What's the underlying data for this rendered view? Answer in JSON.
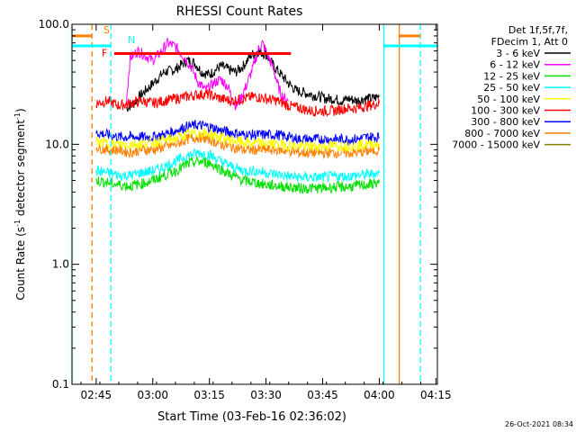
{
  "chart_data": {
    "type": "line",
    "title": "RHESSI Count Rates",
    "xlabel": "Start Time (03-Feb-16 02:36:02)",
    "ylabel_main": "Count Rate (s",
    "ylabel_sup1": "-1",
    "ylabel_mid": " detector segment",
    "ylabel_sup2": "-1",
    "ylabel_end": ")",
    "timestamp": "26-Oct-2021 08:34",
    "yscale": "log",
    "ylim": [
      0.1,
      100
    ],
    "xlim_minutes": [
      2.6,
      99.4
    ],
    "x_tick_labels": [
      "02:45",
      "03:00",
      "03:15",
      "03:30",
      "03:45",
      "04:00",
      "04:15"
    ],
    "x_tick_minutes": [
      9,
      24,
      39,
      54,
      69,
      84,
      99
    ],
    "y_tick_labels": [
      "0.1",
      "1.0",
      "10.0",
      "100.0"
    ],
    "y_tick_values": [
      0.1,
      1,
      10,
      100
    ],
    "legend": {
      "header": [
        "Det 1f,5f,7f,",
        "FDecim 1, Att 0"
      ],
      "position": "right-outside",
      "entries": [
        {
          "label": "3 - 6 keV",
          "color": "#000000"
        },
        {
          "label": "6 - 12 keV",
          "color": "#ff00ff"
        },
        {
          "label": "12 - 25 keV",
          "color": "#00e000"
        },
        {
          "label": "25 - 50 keV",
          "color": "#00ffff"
        },
        {
          "label": "50 - 100 keV",
          "color": "#ffff00"
        },
        {
          "label": "100 - 300 keV",
          "color": "#ff0000"
        },
        {
          "label": "300 - 800 keV",
          "color": "#0000ff"
        },
        {
          "label": "800 - 7000 keV",
          "color": "#ff8000"
        },
        {
          "label": "7000 - 15000 keV",
          "color": "#808000"
        }
      ]
    },
    "series": [
      {
        "color": "#000000",
        "points": [
          [
            17,
            20
          ],
          [
            19,
            22
          ],
          [
            21,
            26
          ],
          [
            24,
            32
          ],
          [
            27,
            40
          ],
          [
            30,
            42
          ],
          [
            33,
            50
          ],
          [
            35,
            48
          ],
          [
            37,
            40
          ],
          [
            39,
            38
          ],
          [
            42,
            45
          ],
          [
            44,
            42
          ],
          [
            46,
            40
          ],
          [
            48,
            45
          ],
          [
            50,
            55
          ],
          [
            52,
            60
          ],
          [
            54,
            56
          ],
          [
            56,
            45
          ],
          [
            58,
            38
          ],
          [
            60,
            32
          ],
          [
            62,
            28
          ],
          [
            64,
            27
          ],
          [
            66,
            26
          ],
          [
            68,
            25
          ],
          [
            70,
            24
          ],
          [
            72,
            24
          ],
          [
            74,
            23
          ],
          [
            76,
            24
          ],
          [
            78,
            23
          ],
          [
            80,
            24
          ],
          [
            82,
            24
          ],
          [
            84,
            25
          ]
        ]
      },
      {
        "color": "#ff00ff",
        "points": [
          [
            17,
            23
          ],
          [
            18,
            52
          ],
          [
            20,
            60
          ],
          [
            22,
            55
          ],
          [
            24,
            50
          ],
          [
            26,
            58
          ],
          [
            28,
            70
          ],
          [
            30,
            65
          ],
          [
            32,
            55
          ],
          [
            34,
            45
          ],
          [
            36,
            33
          ],
          [
            38,
            28
          ],
          [
            40,
            32
          ],
          [
            42,
            35
          ],
          [
            44,
            30
          ],
          [
            45,
            24
          ],
          [
            46,
            21
          ],
          [
            47,
            23
          ],
          [
            49,
            32
          ],
          [
            51,
            48
          ],
          [
            52,
            62
          ],
          [
            53,
            70
          ],
          [
            54,
            60
          ],
          [
            55,
            50
          ],
          [
            56,
            42
          ],
          [
            57,
            32
          ],
          [
            58,
            26
          ],
          [
            59,
            24
          ],
          [
            60,
            23
          ]
        ]
      },
      {
        "color": "#ff0000",
        "points": [
          [
            9,
            22
          ],
          [
            12,
            23
          ],
          [
            15,
            21
          ],
          [
            18,
            22
          ],
          [
            21,
            23
          ],
          [
            24,
            22
          ],
          [
            27,
            23
          ],
          [
            30,
            24
          ],
          [
            33,
            25
          ],
          [
            36,
            26
          ],
          [
            39,
            26
          ],
          [
            42,
            24
          ],
          [
            45,
            23
          ],
          [
            48,
            24
          ],
          [
            51,
            25
          ],
          [
            54,
            24
          ],
          [
            57,
            23
          ],
          [
            60,
            21
          ],
          [
            63,
            20
          ],
          [
            66,
            19
          ],
          [
            69,
            19
          ],
          [
            72,
            19
          ],
          [
            75,
            20
          ],
          [
            78,
            20
          ],
          [
            81,
            21
          ],
          [
            84,
            22
          ]
        ]
      },
      {
        "color": "#0000ff",
        "points": [
          [
            9,
            12.5
          ],
          [
            12,
            12
          ],
          [
            15,
            11.5
          ],
          [
            18,
            11.5
          ],
          [
            21,
            11.5
          ],
          [
            24,
            11.5
          ],
          [
            27,
            12
          ],
          [
            30,
            13
          ],
          [
            33,
            14
          ],
          [
            36,
            14.5
          ],
          [
            39,
            14
          ],
          [
            42,
            13
          ],
          [
            45,
            12.5
          ],
          [
            48,
            12
          ],
          [
            51,
            12
          ],
          [
            54,
            12
          ],
          [
            57,
            12
          ],
          [
            60,
            11.5
          ],
          [
            63,
            11
          ],
          [
            66,
            11
          ],
          [
            69,
            11
          ],
          [
            72,
            11
          ],
          [
            75,
            11
          ],
          [
            78,
            11
          ],
          [
            81,
            11.5
          ],
          [
            84,
            11.5
          ]
        ]
      },
      {
        "color": "#ff8000",
        "points": [
          [
            9,
            9.5
          ],
          [
            12,
            9
          ],
          [
            15,
            9
          ],
          [
            18,
            8.5
          ],
          [
            21,
            9
          ],
          [
            24,
            9
          ],
          [
            27,
            9.5
          ],
          [
            30,
            10
          ],
          [
            33,
            11
          ],
          [
            36,
            11.5
          ],
          [
            39,
            11
          ],
          [
            42,
            10
          ],
          [
            45,
            9.5
          ],
          [
            48,
            9
          ],
          [
            51,
            9
          ],
          [
            54,
            9
          ],
          [
            57,
            9
          ],
          [
            60,
            8.8
          ],
          [
            63,
            8.5
          ],
          [
            66,
            8.5
          ],
          [
            69,
            8.5
          ],
          [
            72,
            8.5
          ],
          [
            75,
            8.5
          ],
          [
            78,
            8.5
          ],
          [
            81,
            8.8
          ],
          [
            84,
            9
          ]
        ]
      },
      {
        "color": "#00ffff",
        "points": [
          [
            9,
            6
          ],
          [
            12,
            5.8
          ],
          [
            15,
            5.5
          ],
          [
            18,
            5.5
          ],
          [
            21,
            5.8
          ],
          [
            24,
            6
          ],
          [
            27,
            6.5
          ],
          [
            30,
            7.2
          ],
          [
            33,
            8
          ],
          [
            36,
            8.5
          ],
          [
            39,
            8.2
          ],
          [
            42,
            7.2
          ],
          [
            45,
            6.5
          ],
          [
            48,
            6
          ],
          [
            51,
            6
          ],
          [
            54,
            5.8
          ],
          [
            57,
            5.6
          ],
          [
            60,
            5.4
          ],
          [
            63,
            5.3
          ],
          [
            66,
            5.3
          ],
          [
            69,
            5.3
          ],
          [
            72,
            5.4
          ],
          [
            75,
            5.4
          ],
          [
            78,
            5.5
          ],
          [
            81,
            5.6
          ],
          [
            84,
            5.8
          ]
        ]
      },
      {
        "color": "#00e000",
        "points": [
          [
            9,
            5
          ],
          [
            12,
            4.8
          ],
          [
            15,
            4.6
          ],
          [
            18,
            4.5
          ],
          [
            21,
            4.7
          ],
          [
            24,
            5
          ],
          [
            27,
            5.5
          ],
          [
            30,
            6
          ],
          [
            33,
            6.8
          ],
          [
            36,
            7.2
          ],
          [
            39,
            7
          ],
          [
            42,
            6.2
          ],
          [
            45,
            5.5
          ],
          [
            48,
            5
          ],
          [
            51,
            4.8
          ],
          [
            54,
            4.6
          ],
          [
            57,
            4.5
          ],
          [
            60,
            4.4
          ],
          [
            63,
            4.3
          ],
          [
            66,
            4.3
          ],
          [
            69,
            4.3
          ],
          [
            72,
            4.4
          ],
          [
            75,
            4.4
          ],
          [
            78,
            4.5
          ],
          [
            81,
            4.6
          ],
          [
            84,
            4.8
          ]
        ]
      },
      {
        "color": "#ffff00",
        "points": [
          [
            9,
            10.5
          ],
          [
            12,
            10.2
          ],
          [
            15,
            10
          ],
          [
            18,
            10
          ],
          [
            21,
            10.2
          ],
          [
            24,
            10.4
          ],
          [
            27,
            10.8
          ],
          [
            30,
            11.2
          ],
          [
            33,
            12
          ],
          [
            36,
            12.5
          ],
          [
            39,
            12.2
          ],
          [
            42,
            11.4
          ],
          [
            45,
            10.8
          ],
          [
            48,
            10.4
          ],
          [
            51,
            10.2
          ],
          [
            54,
            10.2
          ],
          [
            57,
            10
          ],
          [
            60,
            9.8
          ],
          [
            63,
            9.6
          ],
          [
            66,
            9.6
          ],
          [
            69,
            9.6
          ],
          [
            72,
            9.7
          ],
          [
            75,
            9.7
          ],
          [
            78,
            9.8
          ],
          [
            81,
            10
          ],
          [
            84,
            10.2
          ]
        ]
      }
    ],
    "vertical_lines": [
      {
        "minute": 2.6,
        "color": "#00ffff",
        "style": "solid"
      },
      {
        "minute": 7.9,
        "color": "#ff8000",
        "style": "dashed"
      },
      {
        "minute": 12.9,
        "color": "#00ffff",
        "style": "dashed"
      },
      {
        "minute": 85.2,
        "color": "#00ffff",
        "style": "solid"
      },
      {
        "minute": 89.3,
        "color": "#ff8000",
        "style": "solid"
      },
      {
        "minute": 94.9,
        "color": "#00ffff",
        "style": "dashed"
      }
    ],
    "flag_bars": [
      {
        "label": "S",
        "color": "#ff8000",
        "x_start": 2.6,
        "x_end": 7.9,
        "value": 80
      },
      {
        "label": "N",
        "color": "#00ffff",
        "x_start": 2.6,
        "x_end": 12.9,
        "value": 66
      },
      {
        "label": "F",
        "color": "#ff0000",
        "x_start": 13.8,
        "x_end": 60.6,
        "value": 57
      },
      {
        "label": "",
        "color": "#ff8000",
        "x_start": 89.3,
        "x_end": 94.9,
        "value": 80
      },
      {
        "label": "",
        "color": "#00ffff",
        "x_start": 85.2,
        "x_end": 99.4,
        "value": 66
      }
    ]
  }
}
